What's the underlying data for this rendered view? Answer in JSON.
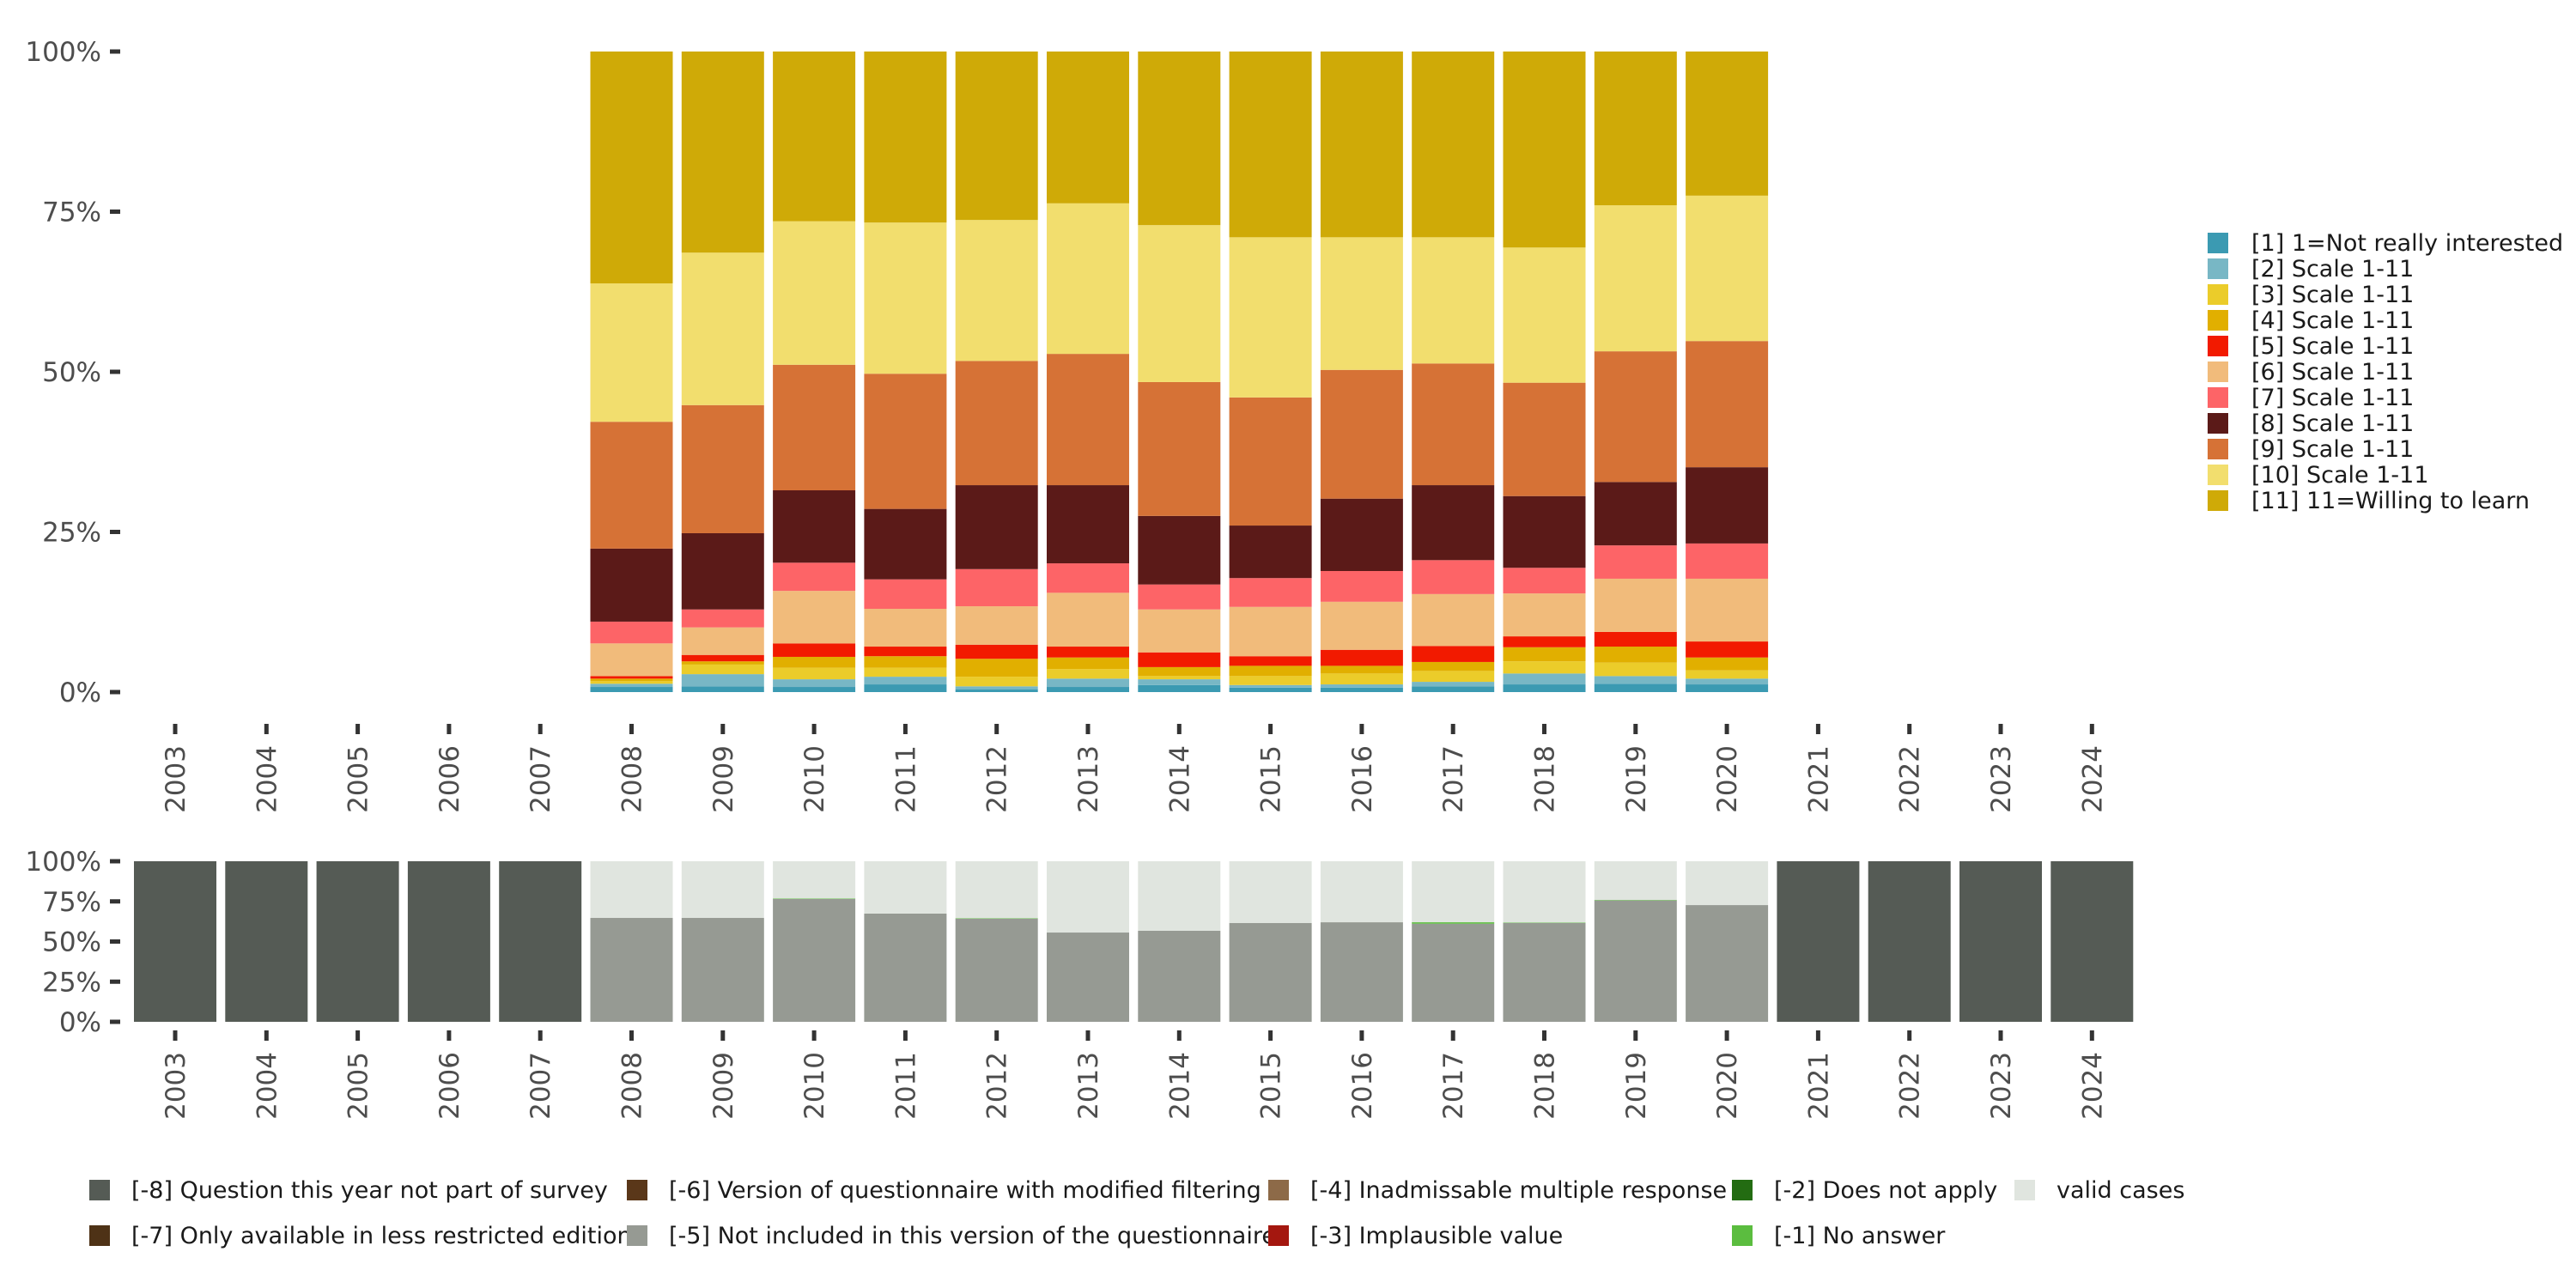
{
  "chart_data": [
    {
      "type": "bar",
      "stacked": true,
      "title": "",
      "xlabel": "",
      "ylabel": "",
      "ylim": [
        0,
        100
      ],
      "y_ticks": [
        "0%",
        "25%",
        "50%",
        "75%",
        "100%"
      ],
      "y_tick_values": [
        0,
        25,
        50,
        75,
        100
      ],
      "grid": false,
      "legend_position": "right",
      "categories": [
        "2003",
        "2004",
        "2005",
        "2006",
        "2007",
        "2008",
        "2009",
        "2010",
        "2011",
        "2012",
        "2013",
        "2014",
        "2015",
        "2016",
        "2017",
        "2018",
        "2019",
        "2020",
        "2021",
        "2022",
        "2023",
        "2024"
      ],
      "series": [
        {
          "name": "[1] 1=Not really interested",
          "color": "#3b9ab2",
          "values": [
            null,
            null,
            null,
            null,
            null,
            0.8,
            0.9,
            0.8,
            1.2,
            0.4,
            0.8,
            1.1,
            0.7,
            0.7,
            0.9,
            1.2,
            1.3,
            1.2,
            null,
            null,
            null,
            null
          ]
        },
        {
          "name": "[2] Scale 1-11",
          "color": "#78b7c5",
          "values": [
            null,
            null,
            null,
            null,
            null,
            0.5,
            1.9,
            1.2,
            1.2,
            0.5,
            1.3,
            0.9,
            0.4,
            0.5,
            0.7,
            1.7,
            1.2,
            0.9,
            null,
            null,
            null,
            null
          ]
        },
        {
          "name": "[3] Scale 1-11",
          "color": "#ebcc2a",
          "values": [
            null,
            null,
            null,
            null,
            null,
            0.4,
            1.5,
            1.8,
            1.4,
            1.5,
            1.5,
            0.5,
            1.4,
            1.7,
            1.7,
            1.9,
            2.1,
            1.3,
            null,
            null,
            null,
            null
          ]
        },
        {
          "name": "[4] Scale 1-11",
          "color": "#e1af00",
          "values": [
            null,
            null,
            null,
            null,
            null,
            0.4,
            0.5,
            1.7,
            1.8,
            2.8,
            1.8,
            1.4,
            1.6,
            1.2,
            1.4,
            2.2,
            2.5,
            2.0,
            null,
            null,
            null,
            null
          ]
        },
        {
          "name": "[5] Scale 1-11",
          "color": "#f21a00",
          "values": [
            null,
            null,
            null,
            null,
            null,
            0.4,
            1.0,
            2.1,
            1.5,
            2.2,
            1.7,
            2.3,
            1.5,
            2.5,
            2.5,
            1.7,
            2.3,
            2.5,
            null,
            null,
            null,
            null
          ]
        },
        {
          "name": "[6] Scale 1-11",
          "color": "#f1bb7b",
          "values": [
            null,
            null,
            null,
            null,
            null,
            5.1,
            4.3,
            8.2,
            5.9,
            6.0,
            8.4,
            6.7,
            7.7,
            7.5,
            8.1,
            6.7,
            8.3,
            9.8,
            null,
            null,
            null,
            null
          ]
        },
        {
          "name": "[7] Scale 1-11",
          "color": "#fd6467",
          "values": [
            null,
            null,
            null,
            null,
            null,
            3.4,
            2.8,
            4.4,
            4.6,
            5.8,
            4.6,
            3.9,
            4.5,
            4.8,
            5.3,
            4.0,
            5.2,
            5.5,
            null,
            null,
            null,
            null
          ]
        },
        {
          "name": "[8] Scale 1-11",
          "color": "#5b1a18",
          "values": [
            null,
            null,
            null,
            null,
            null,
            11.4,
            11.9,
            11.3,
            11.0,
            13.1,
            12.2,
            10.7,
            8.2,
            11.3,
            11.7,
            11.2,
            9.9,
            11.9,
            null,
            null,
            null,
            null
          ]
        },
        {
          "name": "[9] Scale 1-11",
          "color": "#d67236",
          "values": [
            null,
            null,
            null,
            null,
            null,
            19.8,
            20.0,
            19.6,
            21.1,
            19.4,
            20.5,
            20.9,
            20.0,
            20.1,
            19.0,
            17.7,
            20.4,
            19.7,
            null,
            null,
            null,
            null
          ]
        },
        {
          "name": "[10] Scale 1-11",
          "color": "#f2de6e",
          "values": [
            null,
            null,
            null,
            null,
            null,
            21.6,
            23.8,
            22.4,
            23.6,
            22.0,
            23.5,
            24.5,
            25.0,
            20.7,
            19.7,
            21.1,
            22.8,
            22.7,
            null,
            null,
            null,
            null
          ]
        },
        {
          "name": "[11] 11=Willing to learn",
          "color": "#cfaa07",
          "values": [
            null,
            null,
            null,
            null,
            null,
            36.2,
            31.4,
            26.5,
            26.7,
            26.3,
            23.7,
            27.1,
            29.0,
            29.0,
            29.0,
            30.6,
            24.0,
            22.5,
            null,
            null,
            null,
            null
          ]
        }
      ]
    },
    {
      "type": "bar",
      "stacked": true,
      "title": "",
      "xlabel": "",
      "ylabel": "",
      "ylim": [
        0,
        100
      ],
      "y_ticks": [
        "0%",
        "25%",
        "50%",
        "75%",
        "100%"
      ],
      "y_tick_values": [
        0,
        25,
        50,
        75,
        100
      ],
      "grid": false,
      "legend_position": "bottom",
      "categories": [
        "2003",
        "2004",
        "2005",
        "2006",
        "2007",
        "2008",
        "2009",
        "2010",
        "2011",
        "2012",
        "2013",
        "2014",
        "2015",
        "2016",
        "2017",
        "2018",
        "2019",
        "2020",
        "2021",
        "2022",
        "2023",
        "2024"
      ],
      "series": [
        {
          "name": "[-8] Question this year not part of survey",
          "color": "#555b55",
          "values": [
            100,
            100,
            100,
            100,
            100,
            0,
            0,
            0,
            0,
            0,
            0,
            0,
            0,
            0,
            0,
            0,
            0,
            0,
            100,
            100,
            100,
            100
          ]
        },
        {
          "name": "[-7] Only available in less restricted edition",
          "color": "#4e3216",
          "values": [
            0,
            0,
            0,
            0,
            0,
            0,
            0,
            0,
            0,
            0,
            0,
            0,
            0,
            0,
            0,
            0,
            0,
            0,
            0,
            0,
            0,
            0
          ]
        },
        {
          "name": "[-6] Version of questionnaire with modified filtering",
          "color": "#5a3719",
          "values": [
            0,
            0,
            0,
            0,
            0,
            0,
            0,
            0,
            0,
            0,
            0,
            0,
            0,
            0,
            0,
            0,
            0,
            0,
            0,
            0,
            0,
            0
          ]
        },
        {
          "name": "[-5] Not included in this version of the questionnaire",
          "color": "#969a93",
          "values": [
            0,
            0,
            0,
            0,
            0,
            64.7,
            64.7,
            76.5,
            67.4,
            64.2,
            55.6,
            56.7,
            61.5,
            62.0,
            61.1,
            61.6,
            75.6,
            72.7,
            0,
            0,
            0,
            0
          ]
        },
        {
          "name": "[-4] Inadmissable multiple response",
          "color": "#8d6a48",
          "values": [
            0,
            0,
            0,
            0,
            0,
            0,
            0,
            0,
            0,
            0,
            0,
            0,
            0,
            0,
            0,
            0,
            0,
            0,
            0,
            0,
            0,
            0
          ]
        },
        {
          "name": "[-3] Implausible value",
          "color": "#a4170f",
          "values": [
            0,
            0,
            0,
            0,
            0,
            0,
            0,
            0,
            0,
            0,
            0,
            0,
            0,
            0,
            0,
            0,
            0,
            0,
            0,
            0,
            0,
            0
          ]
        },
        {
          "name": "[-2] Does not apply",
          "color": "#236c12",
          "values": [
            0,
            0,
            0,
            0,
            0,
            0,
            0,
            0,
            0,
            0,
            0,
            0,
            0,
            0,
            0,
            0,
            0,
            0,
            0,
            0,
            0,
            0
          ]
        },
        {
          "name": "[-1] No answer",
          "color": "#5bbd3f",
          "values": [
            0,
            0,
            0,
            0,
            0,
            0,
            0,
            0.3,
            0,
            0.3,
            0,
            0,
            0,
            0,
            0.9,
            0.3,
            0.3,
            0,
            0,
            0,
            0,
            0
          ]
        },
        {
          "name": "valid cases",
          "color": "#e0e5df",
          "values": [
            0,
            0,
            0,
            0,
            0,
            35.3,
            35.3,
            23.2,
            32.6,
            35.5,
            44.4,
            43.3,
            38.5,
            38.0,
            38.0,
            38.1,
            24.1,
            27.3,
            0,
            0,
            0,
            0
          ]
        }
      ]
    }
  ],
  "legend_right": {
    "items": [
      {
        "label": "[1] 1=Not really interested",
        "color": "#3b9ab2"
      },
      {
        "label": "[2] Scale 1-11",
        "color": "#78b7c5"
      },
      {
        "label": "[3] Scale 1-11",
        "color": "#ebcc2a"
      },
      {
        "label": "[4] Scale 1-11",
        "color": "#e1af00"
      },
      {
        "label": "[5] Scale 1-11",
        "color": "#f21a00"
      },
      {
        "label": "[6] Scale 1-11",
        "color": "#f1bb7b"
      },
      {
        "label": "[7] Scale 1-11",
        "color": "#fd6467"
      },
      {
        "label": "[8] Scale 1-11",
        "color": "#5b1a18"
      },
      {
        "label": "[9] Scale 1-11",
        "color": "#d67236"
      },
      {
        "label": "[10] Scale 1-11",
        "color": "#f2de6e"
      },
      {
        "label": "[11] 11=Willing to learn",
        "color": "#cfaa07"
      }
    ]
  },
  "legend_bottom": {
    "items": [
      {
        "label": "[-8] Question this year not part of survey",
        "color": "#555b55"
      },
      {
        "label": "[-7] Only available in less restricted edition",
        "color": "#4e3216"
      },
      {
        "label": "[-6] Version of questionnaire with modified filtering",
        "color": "#5a3719"
      },
      {
        "label": "[-5] Not included in this version of the questionnaire",
        "color": "#969a93"
      },
      {
        "label": "[-4] Inadmissable multiple response",
        "color": "#8d6a48"
      },
      {
        "label": "[-3] Implausible value",
        "color": "#a4170f"
      },
      {
        "label": "[-2] Does not apply",
        "color": "#236c12"
      },
      {
        "label": "[-1] No answer",
        "color": "#5bbd3f"
      },
      {
        "label": "valid cases",
        "color": "#e0e5df"
      }
    ]
  }
}
